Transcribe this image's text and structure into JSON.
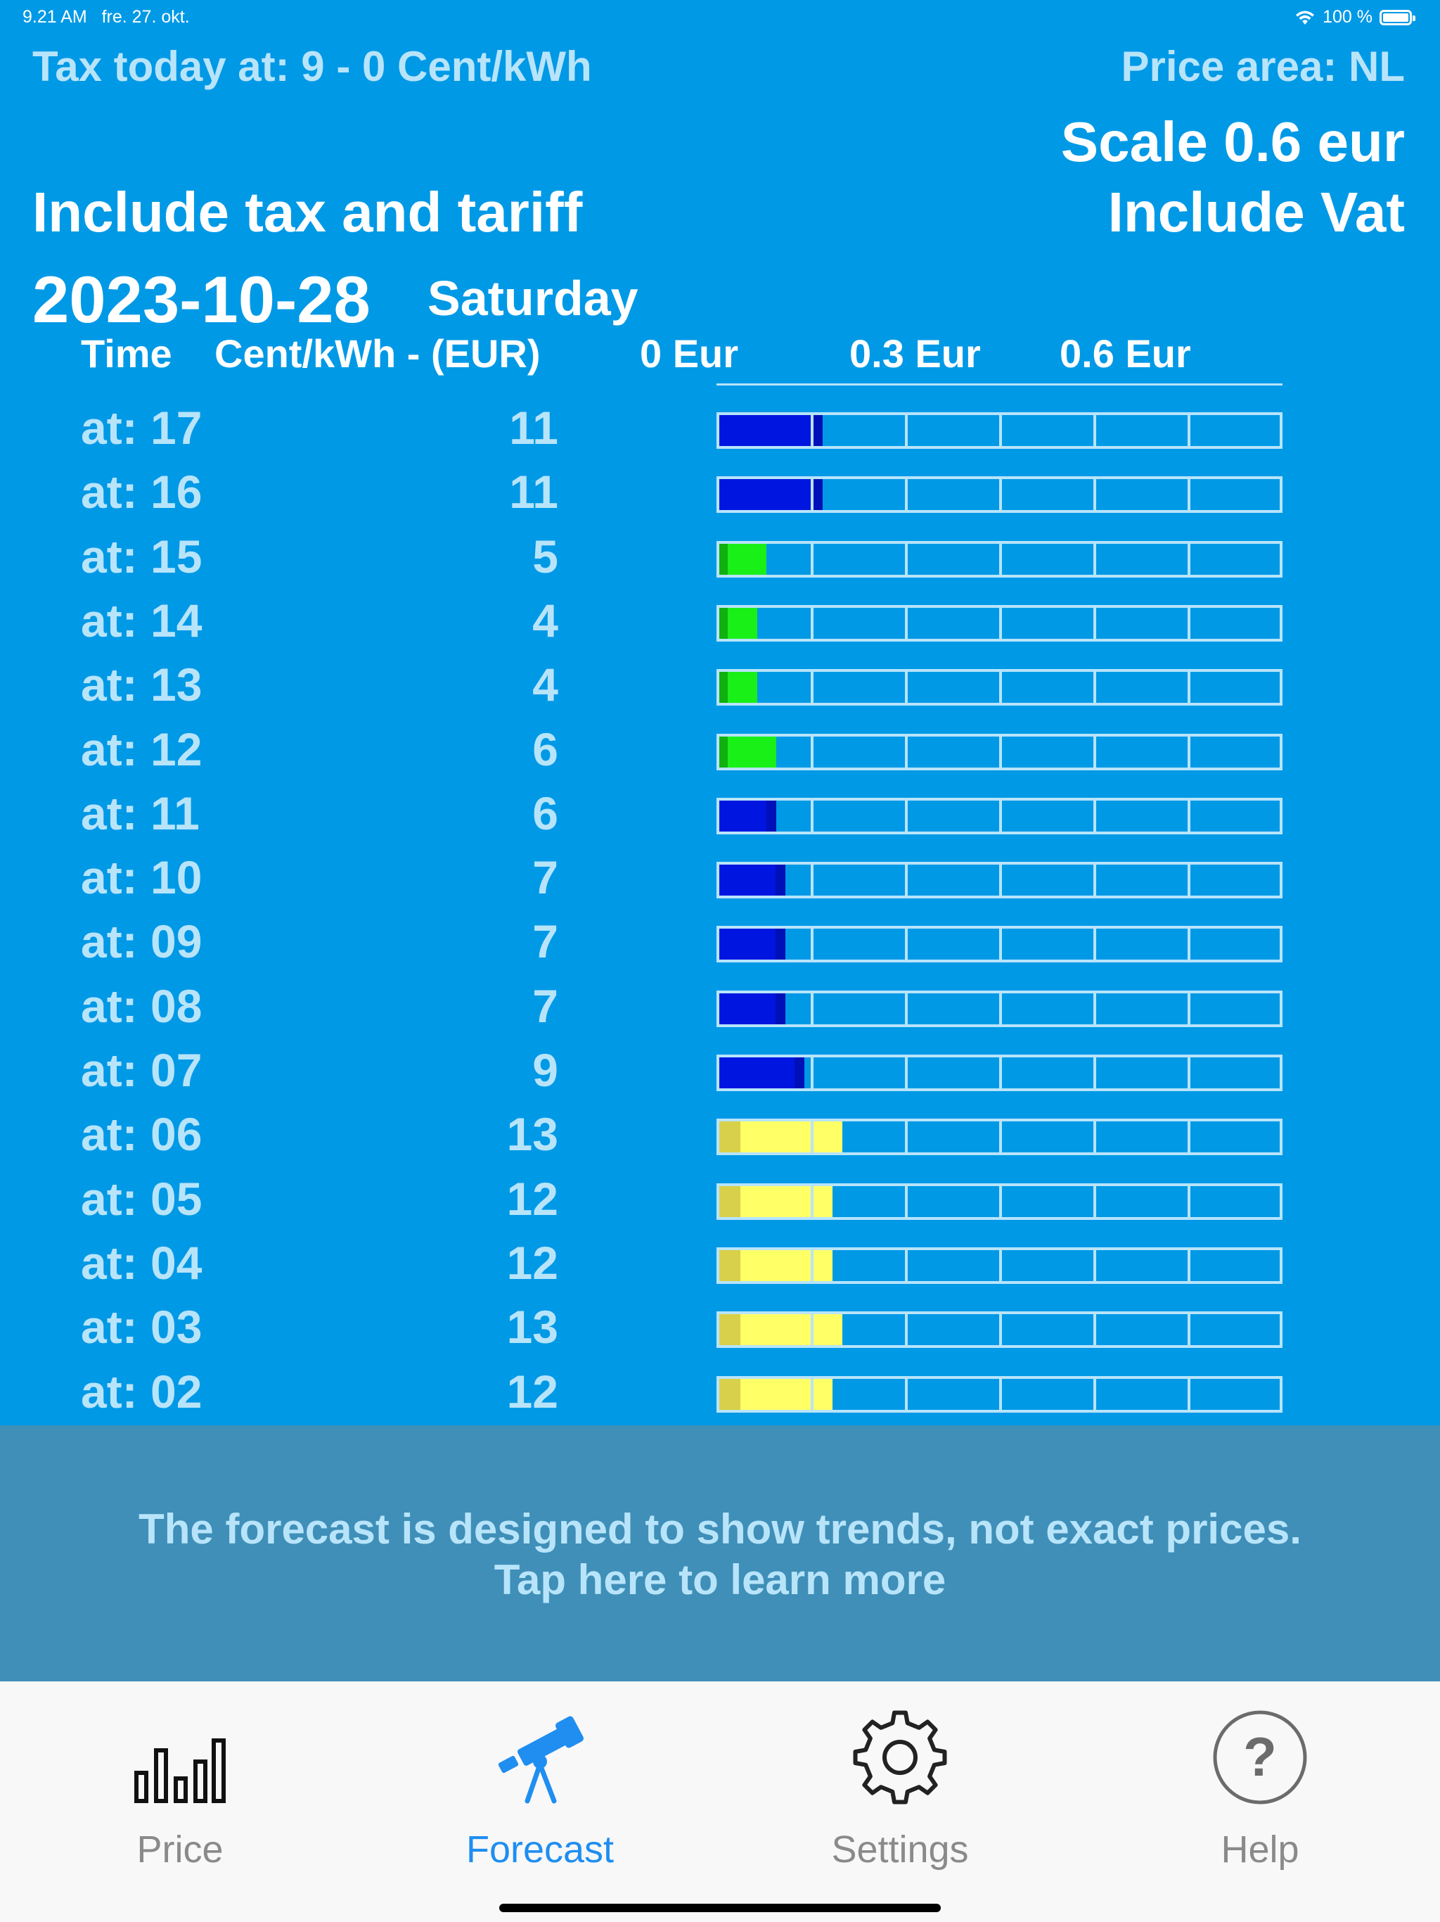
{
  "status_bar": {
    "time": "9.21 AM",
    "date": "fre. 27. okt.",
    "battery": "100 %"
  },
  "header": {
    "tax_today": "Tax today at: 9 - 0 Cent/kWh",
    "price_area": "Price area: NL",
    "scale": "Scale 0.6 eur",
    "include_vat": "Include Vat",
    "include_tax": "Include tax and tariff",
    "date": "2023-10-28",
    "weekday": "Saturday"
  },
  "columns": {
    "time": "Time",
    "price": "Cent/kWh - (EUR)",
    "scale_0": "0 Eur",
    "scale_mid": "0.3 Eur",
    "scale_max": "0.6 Eur"
  },
  "colors": {
    "background": "#0099e6",
    "label": "#b8e4fa",
    "blue_bar": "#0016e0",
    "blue_bar_dark": "#0008a8",
    "green_bar": "#18f018",
    "green_bar_dark": "#10b010",
    "yellow_bar": "#ffff66",
    "yellow_bar_dark": "#d8d04a",
    "panel": "#3f8fb8",
    "tab_active": "#1f8ef0"
  },
  "rows": [
    {
      "time": "at: 17",
      "value": "11",
      "fraction": 0.183,
      "color": "blue"
    },
    {
      "time": "at: 16",
      "value": "11",
      "fraction": 0.183,
      "color": "blue"
    },
    {
      "time": "at: 15",
      "value": "5",
      "fraction": 0.083,
      "color": "green"
    },
    {
      "time": "at: 14",
      "value": "4",
      "fraction": 0.067,
      "color": "green"
    },
    {
      "time": "at: 13",
      "value": "4",
      "fraction": 0.067,
      "color": "green"
    },
    {
      "time": "at: 12",
      "value": "6",
      "fraction": 0.1,
      "color": "green"
    },
    {
      "time": "at: 11",
      "value": "6",
      "fraction": 0.1,
      "color": "blue"
    },
    {
      "time": "at: 10",
      "value": "7",
      "fraction": 0.117,
      "color": "blue"
    },
    {
      "time": "at: 09",
      "value": "7",
      "fraction": 0.117,
      "color": "blue"
    },
    {
      "time": "at: 08",
      "value": "7",
      "fraction": 0.117,
      "color": "blue"
    },
    {
      "time": "at: 07",
      "value": "9",
      "fraction": 0.15,
      "color": "blue"
    },
    {
      "time": "at: 06",
      "value": "13",
      "fraction": 0.217,
      "color": "yellow"
    },
    {
      "time": "at: 05",
      "value": "12",
      "fraction": 0.2,
      "color": "yellow"
    },
    {
      "time": "at: 04",
      "value": "12",
      "fraction": 0.2,
      "color": "yellow"
    },
    {
      "time": "at: 03",
      "value": "13",
      "fraction": 0.217,
      "color": "yellow"
    },
    {
      "time": "at: 02",
      "value": "12",
      "fraction": 0.2,
      "color": "yellow"
    }
  ],
  "info": {
    "line1": "The forecast is designed to show trends, not exact prices.",
    "line2": "Tap here to learn more"
  },
  "tabs": [
    {
      "label": "Price",
      "icon": "bar-chart-icon",
      "active": false
    },
    {
      "label": "Forecast",
      "icon": "telescope-icon",
      "active": true
    },
    {
      "label": "Settings",
      "icon": "gear-icon",
      "active": false
    },
    {
      "label": "Help",
      "icon": "question-circle-icon",
      "active": false
    }
  ]
}
